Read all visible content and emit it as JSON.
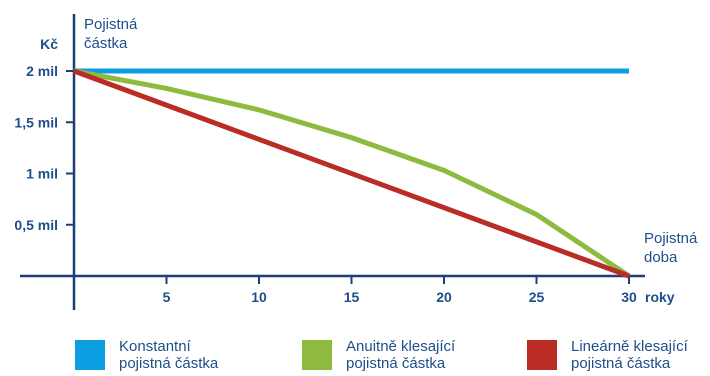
{
  "chart_data": {
    "type": "line",
    "y_title_line1": "Pojistná",
    "y_title_line2": "částka",
    "y_unit": "Kč",
    "x_title_line1": "Pojistná",
    "x_title_line2": "doba",
    "x_unit": "roky",
    "x_ticks": [
      5,
      10,
      15,
      20,
      25,
      30
    ],
    "y_ticks": [
      {
        "value": 0.5,
        "label": "0,5 mil"
      },
      {
        "value": 1,
        "label": "1 mil"
      },
      {
        "value": 1.5,
        "label": "1,5 mil"
      },
      {
        "value": 2,
        "label": "2 mil"
      }
    ],
    "xlim": [
      0,
      30
    ],
    "ylim": [
      0,
      2.3
    ],
    "series": [
      {
        "name": "Konstantní pojistná částka",
        "color": "#0b9ee0",
        "x": [
          0,
          30
        ],
        "y": [
          2,
          2
        ]
      },
      {
        "name": "Anuitně klesající pojistná částka",
        "color": "#8dba3f",
        "x": [
          0,
          5,
          10,
          15,
          20,
          25,
          30
        ],
        "y": [
          2,
          1.83,
          1.62,
          1.35,
          1.03,
          0.6,
          0
        ]
      },
      {
        "name": "Lineárně klesající pojistná částka",
        "color": "#b92d25",
        "x": [
          0,
          30
        ],
        "y": [
          2,
          0
        ]
      }
    ],
    "legend": [
      {
        "line1": "Konstantní",
        "line2": "pojistná částka",
        "color": "#0b9ee0"
      },
      {
        "line1": "Anuitně klesající",
        "line2": "pojistná částka",
        "color": "#8dba3f"
      },
      {
        "line1": "Lineárně klesající",
        "line2": "pojistná částka",
        "color": "#b92d25"
      }
    ]
  }
}
